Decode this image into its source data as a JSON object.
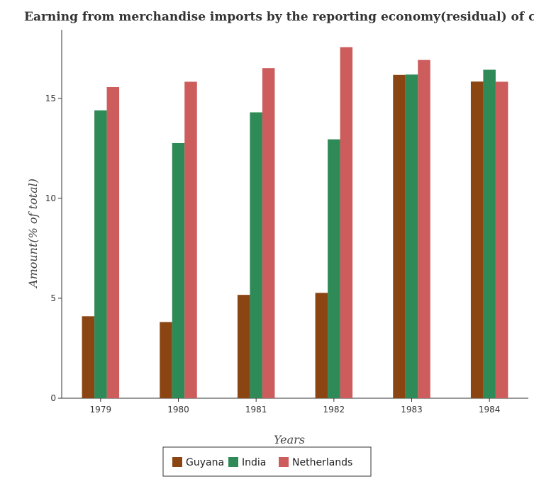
{
  "chart_data": {
    "type": "bar",
    "title": "Earning from merchandise imports by the reporting economy(residual) of countries",
    "xlabel": "Years",
    "ylabel": "Amount(% of total)",
    "categories": [
      "1979",
      "1980",
      "1981",
      "1982",
      "1983",
      "1984"
    ],
    "series": [
      {
        "name": "Guyana",
        "color": "#8B4513",
        "values": [
          4.1,
          3.81,
          5.17,
          5.27,
          16.17,
          15.84
        ]
      },
      {
        "name": "India",
        "color": "#2E8B57",
        "values": [
          14.4,
          12.76,
          14.3,
          12.95,
          16.19,
          16.43
        ]
      },
      {
        "name": "Netherlands",
        "color": "#CD5C5C",
        "values": [
          15.56,
          15.83,
          16.51,
          17.56,
          16.92,
          15.83
        ]
      }
    ],
    "ylim": [
      0,
      18.43
    ],
    "yticks": [
      0,
      5,
      10,
      15
    ],
    "grid": false,
    "legend_position": "bottom"
  }
}
